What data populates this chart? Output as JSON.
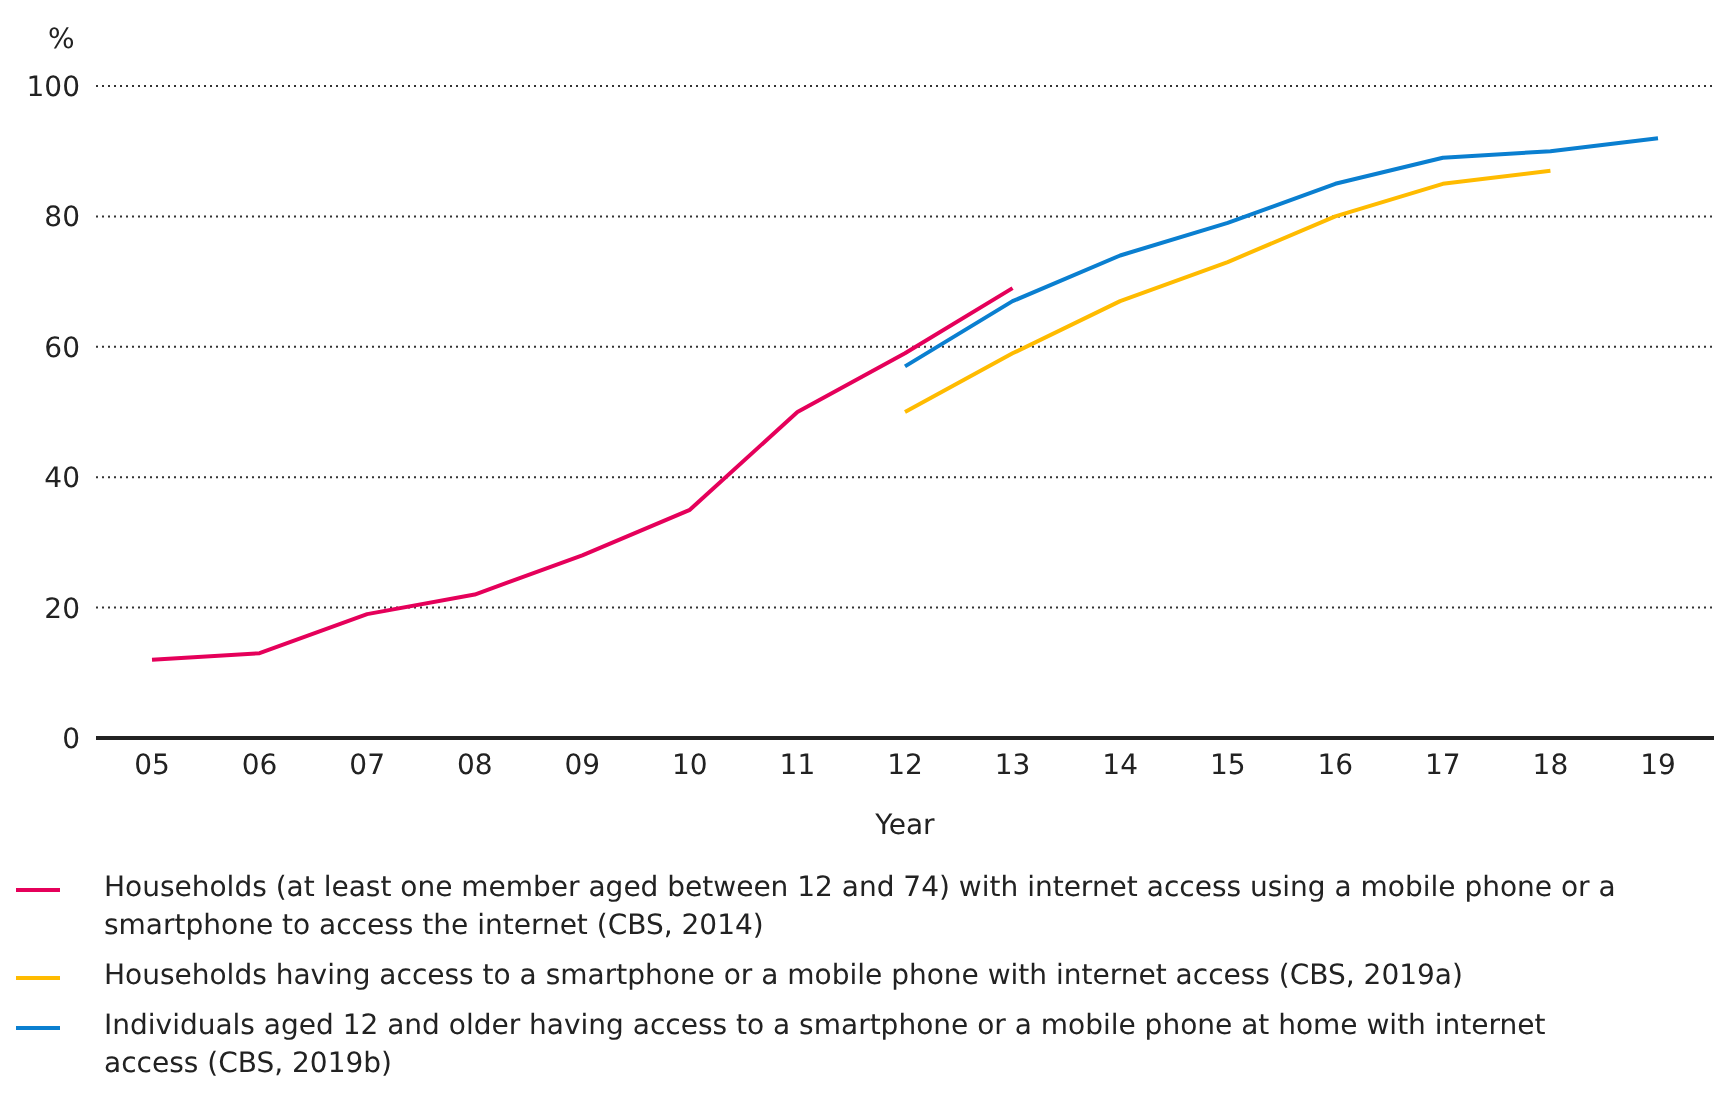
{
  "chart_data": {
    "type": "line",
    "ylabel": "%",
    "xlabel": "Year",
    "categories": [
      "05",
      "06",
      "07",
      "08",
      "09",
      "10",
      "11",
      "12",
      "13",
      "14",
      "15",
      "16",
      "17",
      "18",
      "19"
    ],
    "series": [
      {
        "name": "Households (at least one member aged between 12 and 74) with internet access using a mobile phone or a smartphone to access the internet (CBS, 2014)",
        "color": "#e5005a",
        "values": [
          12,
          13,
          19,
          22,
          28,
          35,
          50,
          59,
          69,
          null,
          null,
          null,
          null,
          null,
          null
        ]
      },
      {
        "name": "Households having access to a smartphone or a mobile phone with internet access (CBS, 2019a)",
        "color": "#ffbb00",
        "values": [
          null,
          null,
          null,
          null,
          null,
          null,
          null,
          50,
          59,
          67,
          73,
          80,
          85,
          87,
          null
        ]
      },
      {
        "name": "Individuals aged 12 and older having access to a smartphone or a mobile phone at home with internet access (CBS, 2019b)",
        "color": "#0a7fd0",
        "values": [
          null,
          null,
          null,
          null,
          null,
          null,
          null,
          57,
          67,
          74,
          79,
          85,
          89,
          90,
          92
        ]
      }
    ],
    "ylim": [
      0,
      100
    ],
    "yticks": [
      0,
      20,
      40,
      60,
      80,
      100
    ],
    "grid": "y",
    "legend": "bottom",
    "marker": "none",
    "line_style": "solid"
  }
}
